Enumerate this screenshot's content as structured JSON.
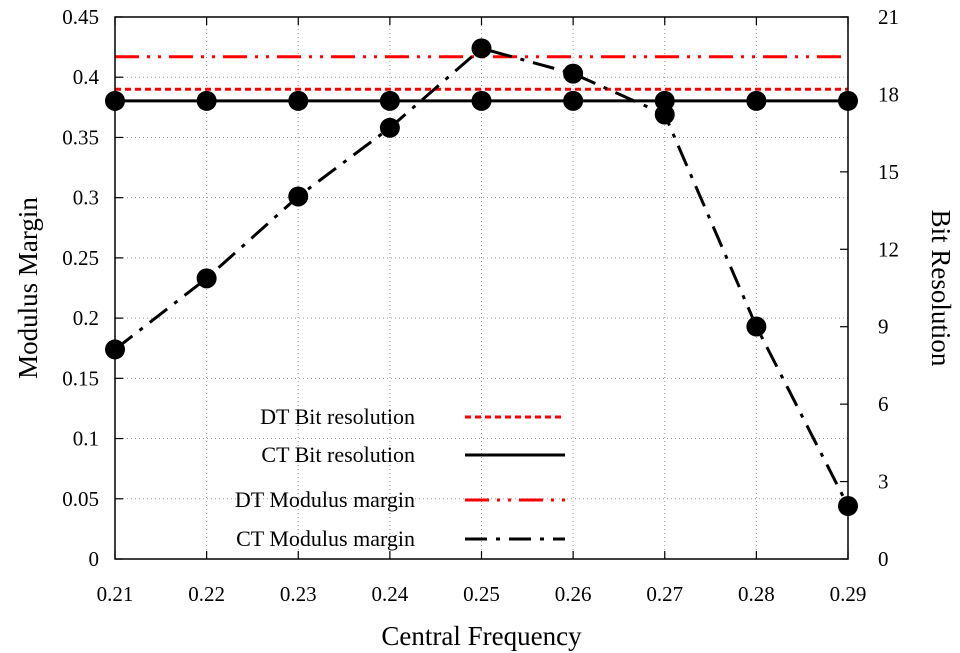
{
  "chart_data": {
    "type": "line",
    "title": "",
    "xlabel": "Central Frequency",
    "ylabel": "Modulus Margin",
    "y2label": "Bit Resolution",
    "x": [
      0.21,
      0.22,
      0.23,
      0.24,
      0.25,
      0.26,
      0.27,
      0.28,
      0.29
    ],
    "x_tick_labels": [
      "0.21",
      "0.22",
      "0.23",
      "0.24",
      "0.25",
      "0.26",
      "0.27",
      "0.28",
      "0.29"
    ],
    "xlim": [
      0.21,
      0.29
    ],
    "ylim": [
      0,
      0.45
    ],
    "y_ticks": [
      0,
      0.05,
      0.1,
      0.15,
      0.2,
      0.25,
      0.3,
      0.35,
      0.4,
      0.45
    ],
    "y_tick_labels": [
      "0",
      "0.05",
      "0.1",
      "0.15",
      "0.2",
      "0.25",
      "0.3",
      "0.35",
      "0.4",
      "0.45"
    ],
    "y2lim": [
      0,
      21
    ],
    "y2_ticks": [
      0,
      3,
      6,
      9,
      12,
      15,
      18,
      21
    ],
    "y2_tick_labels": [
      "0",
      "3",
      "6",
      "9",
      "12",
      "15",
      "18",
      "21"
    ],
    "grid": true,
    "legend_position": "bottom-center",
    "series": [
      {
        "name": "DT Bit resolution",
        "axis": "y2",
        "color": "#ff0000",
        "dash": "dotted",
        "markers": false,
        "values": [
          18.2,
          18.2,
          18.2,
          18.2,
          18.2,
          18.2,
          18.2,
          18.2,
          18.2
        ]
      },
      {
        "name": "CT Bit resolution",
        "axis": "y2",
        "color": "#000000",
        "dash": "solid",
        "markers": true,
        "values": [
          17.75,
          17.75,
          17.75,
          17.75,
          17.75,
          17.75,
          17.75,
          17.75,
          17.75
        ]
      },
      {
        "name": "DT Modulus margin",
        "axis": "y",
        "color": "#ff0000",
        "dash": "dash-dot-dot",
        "markers": false,
        "values": [
          0.417,
          0.417,
          0.417,
          0.417,
          0.417,
          0.417,
          0.417,
          0.417,
          0.417
        ]
      },
      {
        "name": "CT Modulus margin",
        "axis": "y",
        "color": "#000000",
        "dash": "dash-dot",
        "markers": true,
        "values": [
          0.174,
          0.233,
          0.301,
          0.358,
          0.424,
          0.403,
          0.369,
          0.193,
          0.044
        ]
      }
    ]
  }
}
